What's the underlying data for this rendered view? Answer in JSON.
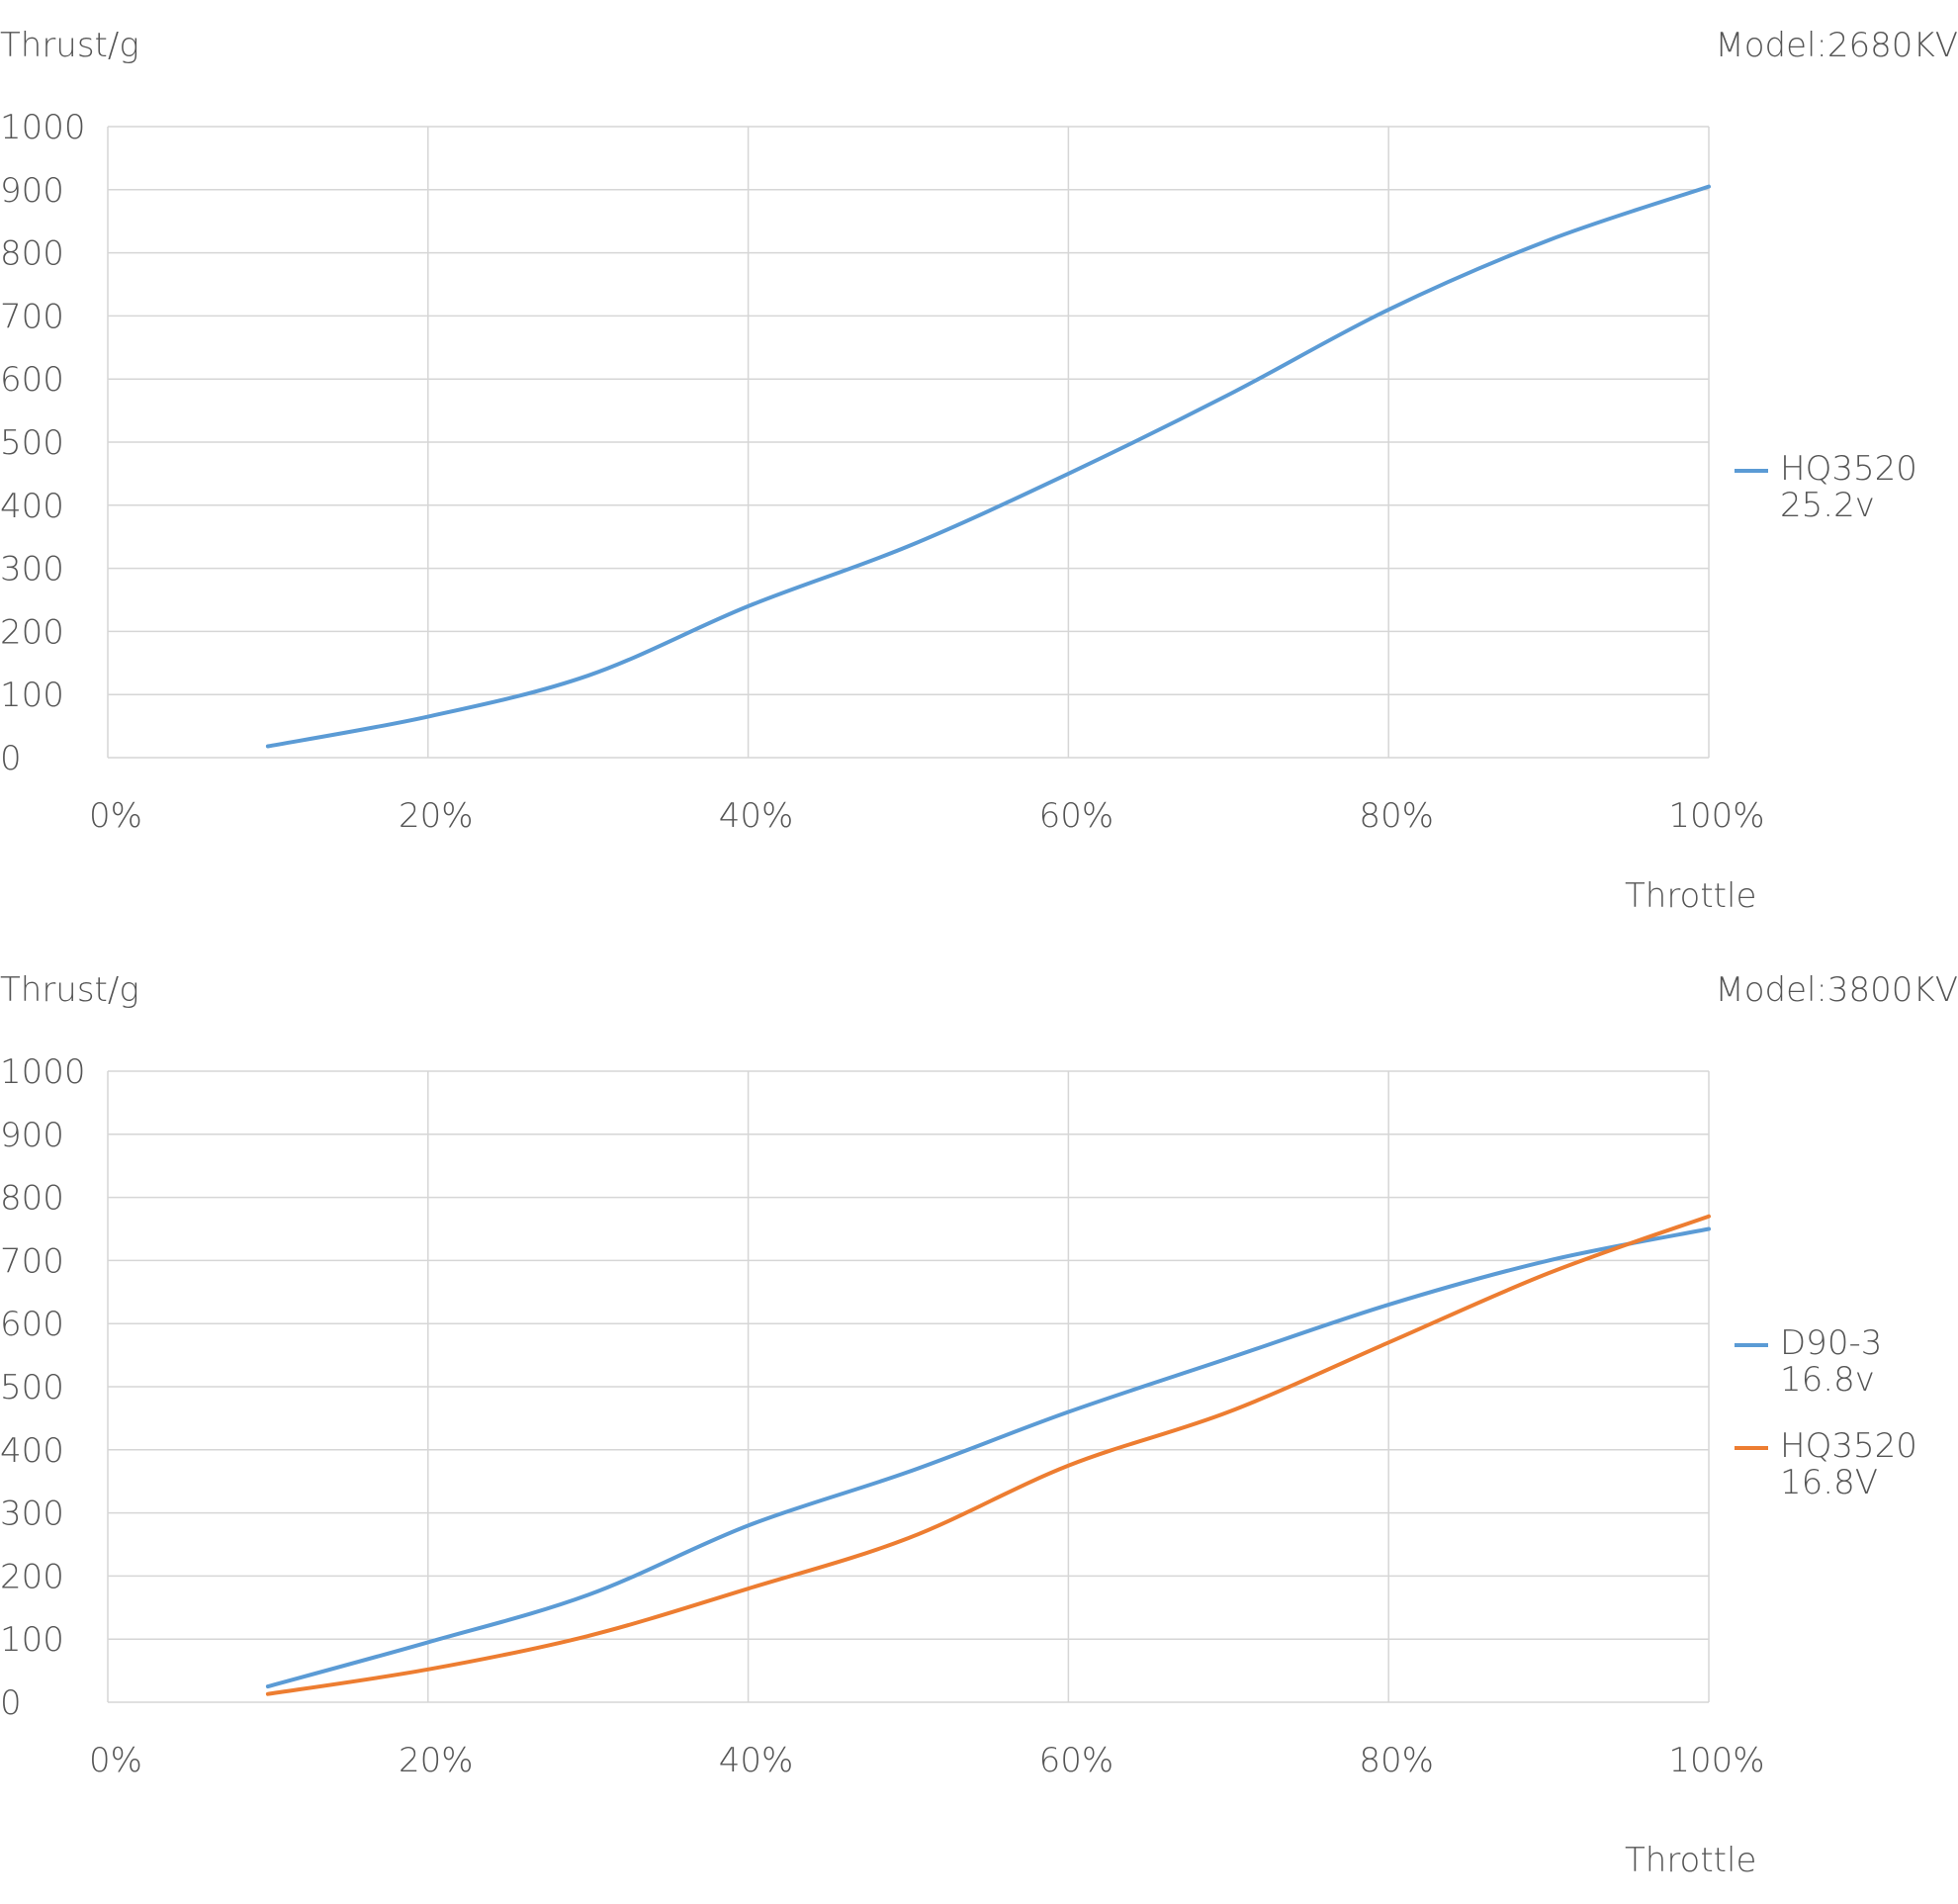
{
  "chart_data": [
    {
      "type": "line",
      "title": "",
      "ylabel": "Thrust/g",
      "xlabel": "Throttle",
      "annotation": "Model:2680KV",
      "ylim": [
        0,
        1000
      ],
      "xlim": [
        0,
        100
      ],
      "yticks": [
        "0",
        "100",
        "200",
        "300",
        "400",
        "500",
        "600",
        "700",
        "800",
        "900",
        "1000"
      ],
      "xticks": [
        "0%",
        "20%",
        "40%",
        "60%",
        "80%",
        "100%"
      ],
      "grid": true,
      "legend_position": "right",
      "x": [
        10,
        20,
        30,
        40,
        50,
        60,
        70,
        80,
        90,
        100
      ],
      "series": [
        {
          "name": "HQ3520\n25.2v",
          "color": "#5B9BD5",
          "values": [
            18,
            65,
            130,
            240,
            335,
            450,
            575,
            710,
            820,
            905
          ]
        }
      ]
    },
    {
      "type": "line",
      "title": "",
      "ylabel": "Thrust/g",
      "xlabel": "Throttle",
      "annotation": "Model:3800KV",
      "ylim": [
        0,
        1000
      ],
      "xlim": [
        0,
        100
      ],
      "yticks": [
        "0",
        "100",
        "200",
        "300",
        "400",
        "500",
        "600",
        "700",
        "800",
        "900",
        "1000"
      ],
      "xticks": [
        "0%",
        "20%",
        "40%",
        "60%",
        "80%",
        "100%"
      ],
      "grid": true,
      "legend_position": "right",
      "x": [
        10,
        20,
        30,
        40,
        50,
        60,
        70,
        80,
        90,
        100
      ],
      "series": [
        {
          "name": "D90-3\n16.8v",
          "color": "#5B9BD5",
          "values": [
            25,
            95,
            170,
            280,
            365,
            460,
            545,
            630,
            700,
            750
          ]
        },
        {
          "name": "HQ3520\n16.8V",
          "color": "#ED7D31",
          "values": [
            13,
            52,
            105,
            180,
            260,
            375,
            460,
            570,
            680,
            770
          ]
        }
      ]
    }
  ]
}
